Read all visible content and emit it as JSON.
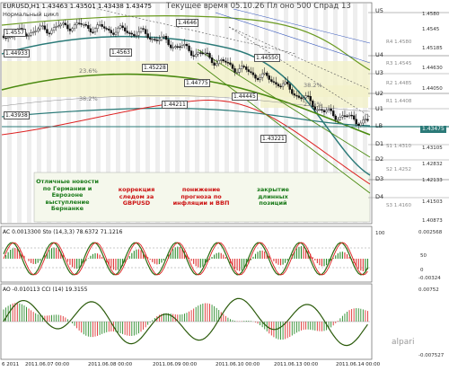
{
  "header": {
    "symbol_line": "EURUSD,H1  1.43463 1.43501 1.43438 1.43475",
    "current_time": "Текущее время 05.10.26 Пл оно 500 Спрад 13",
    "indicator_line": "Нормальный цикл"
  },
  "levels": [
    {
      "name": "U5",
      "color": "#111111"
    },
    {
      "name": "U4",
      "color": "#111111"
    },
    {
      "name": "U3",
      "color": "#111111"
    },
    {
      "name": "U2",
      "color": "#111111"
    },
    {
      "name": "U1",
      "color": "#111111"
    },
    {
      "name": "LB",
      "color": "#111111"
    },
    {
      "name": "D1",
      "color": "#111111"
    },
    {
      "name": "D2",
      "color": "#111111"
    },
    {
      "name": "D3",
      "color": "#111111"
    },
    {
      "name": "D4",
      "color": "#111111"
    }
  ],
  "right_small_labels": [
    "R4 1.4580",
    "R3 1.4545",
    "R2 1.4485",
    "R1 1.4408",
    "S1 1.4310",
    "S2 1.4252",
    "S3 1.4160"
  ],
  "price_axis": [
    "1.4580",
    "1.4545",
    "1.45185",
    "1.44630",
    "1.44050",
    "1.43475",
    "1.43105",
    "1.42832",
    "1.42133",
    "1.41503",
    "1.40873"
  ],
  "current_price": "1.43475",
  "price_labels": [
    "1.4557",
    "1.44933",
    "1.43938",
    "1.4563",
    "1.45228",
    "1.44775",
    "1.44211",
    "1.44445",
    "1.44550",
    "1.43221",
    "1.4646",
    "1.45"
  ],
  "fib_labels": [
    "23.6%",
    "38.2%",
    "38.2%",
    "23.6%"
  ],
  "sub_titles": [
    "44.5%",
    "1.4.3 1.4323 1.9%"
  ],
  "annotations": [
    {
      "text": "Отличные новости по Германии и Еврозоне выступление Бернанке",
      "color": "#1a7a1a"
    },
    {
      "text": "коррекция следом за GBPUSD",
      "color": "#cc1111"
    },
    {
      "text": "понижение прогноза по инфляции и ВВП",
      "color": "#cc1111"
    },
    {
      "text": "закрытие длинных позиций",
      "color": "#1a7a1a"
    }
  ],
  "ac_panel": {
    "title": "AC  0.0013300  Sto (14,3,3)  78.6372  71.1216",
    "axis": [
      "100",
      "50",
      "0"
    ],
    "axis_values": [
      "0.002568",
      "-0.00324"
    ]
  },
  "ao_panel": {
    "title": "AO  -0.010113  CCI (14)  19.3155",
    "axis": [
      "0.00752",
      "-0.007527"
    ]
  },
  "time_axis": [
    "6 2011",
    "2011.06.07 00:00",
    "2011.06.08 00:00",
    "2011.06.09 00:00",
    "2011.06.10 00:00",
    "2011.06.13 00:00",
    "2011.06.14 00:00"
  ],
  "watermark": "alpari",
  "colors": {
    "up_candle": "#ffffff",
    "down_candle": "#111111",
    "band_green": "#4a8a10",
    "band_teal": "#2b7a78",
    "red_line": "#dd2222"
  }
}
